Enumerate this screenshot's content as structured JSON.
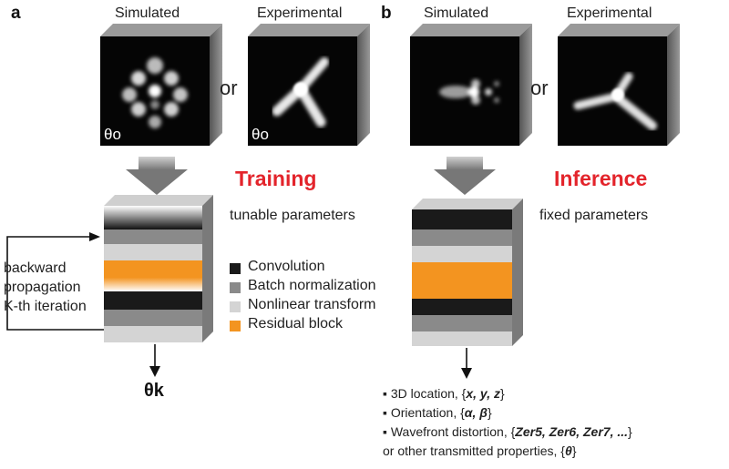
{
  "panel_a": {
    "label": "a",
    "simulated_title": "Simulated",
    "experimental_title": "Experimental",
    "or_text": "or",
    "theta0_sim": "θo",
    "theta0_exp": "θo",
    "phase_title": "Training",
    "param_text": "tunable parameters",
    "backprop_lines": [
      "backward",
      "propagation",
      "K-th iteration"
    ],
    "theta_k": "θk"
  },
  "panel_b": {
    "label": "b",
    "simulated_title": "Simulated",
    "experimental_title": "Experimental",
    "or_text": "or",
    "phase_title": "Inference",
    "param_text": "fixed parameters"
  },
  "legend": {
    "items": [
      {
        "label": "Convolution",
        "color": "#1a1a1a"
      },
      {
        "label": "Batch normalization",
        "color": "#8a8a8a"
      },
      {
        "label": "Nonlinear transform",
        "color": "#d4d4d4"
      },
      {
        "label": "Residual block",
        "color": "#f39420"
      }
    ]
  },
  "outputs": {
    "bullet": "▪",
    "line1_text": "3D location, {",
    "line1_vars": "x, y, z",
    "line1_end": "}",
    "line2_text": "Orientation, {",
    "line2_vars": "α, β",
    "line2_end": "}",
    "line3_text": "Wavefront distortion, {",
    "line3_vars": "Zer5, Zer6, Zer7, ...",
    "line3_end": "}",
    "line4_text": "or other transmitted properties, {",
    "line4_vars": "θ",
    "line4_end": "}"
  },
  "colors": {
    "accent_red": "#e3242b",
    "orange": "#f39420",
    "dark": "#1a1a1a",
    "gray": "#8a8a8a",
    "light_gray": "#d4d4d4"
  }
}
